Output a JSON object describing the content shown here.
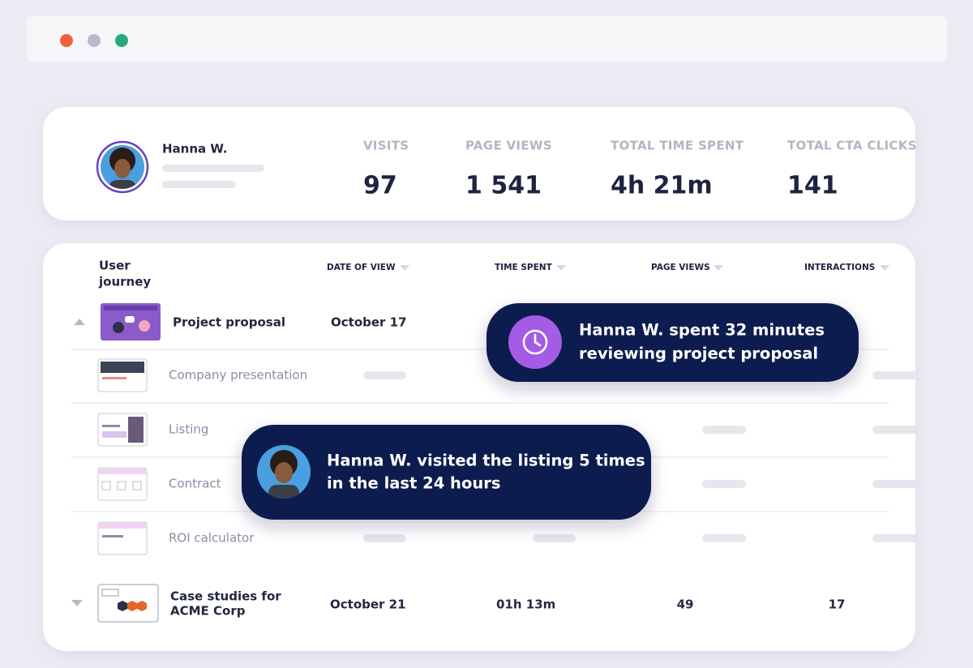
{
  "profile": {
    "name": "Hanna W.",
    "stats": [
      {
        "label": "VISITS",
        "value": 97
      },
      {
        "label": "PAGE VIEWS",
        "value": "1 541"
      },
      {
        "label": "TOTAL TIME SPENT",
        "value": "4h 21m"
      },
      {
        "label": "TOTAL CTA CLICKS",
        "value": 141
      }
    ]
  },
  "journey": {
    "header": {
      "title_lines": [
        "User",
        "journey"
      ],
      "columns": [
        "DATE OF VIEW",
        "TIME SPENT",
        "PAGE VIEWS",
        "INTERACTIONS"
      ]
    },
    "rows": [
      {
        "title_lines": [
          "Project proposal"
        ],
        "date": "October 17"
      },
      {
        "title_lines": [
          "Company presentation"
        ]
      },
      {
        "title_lines": [
          "Listing"
        ]
      },
      {
        "title_lines": [
          "Contract"
        ]
      },
      {
        "title_lines": [
          "ROI calculator"
        ]
      },
      {
        "title_lines": [
          "Case studies for",
          "ACME Corp"
        ],
        "date": "October 21",
        "time_spent": "01h 13m",
        "page_views": 49,
        "interactions": 17
      }
    ]
  },
  "tooltips": [
    {
      "lines": [
        "Hanna W. spent 32 minutes",
        "reviewing project proposal"
      ]
    },
    {
      "lines": [
        "Hanna W. visited the listing 5 times",
        "in the last 24 hours"
      ]
    }
  ]
}
